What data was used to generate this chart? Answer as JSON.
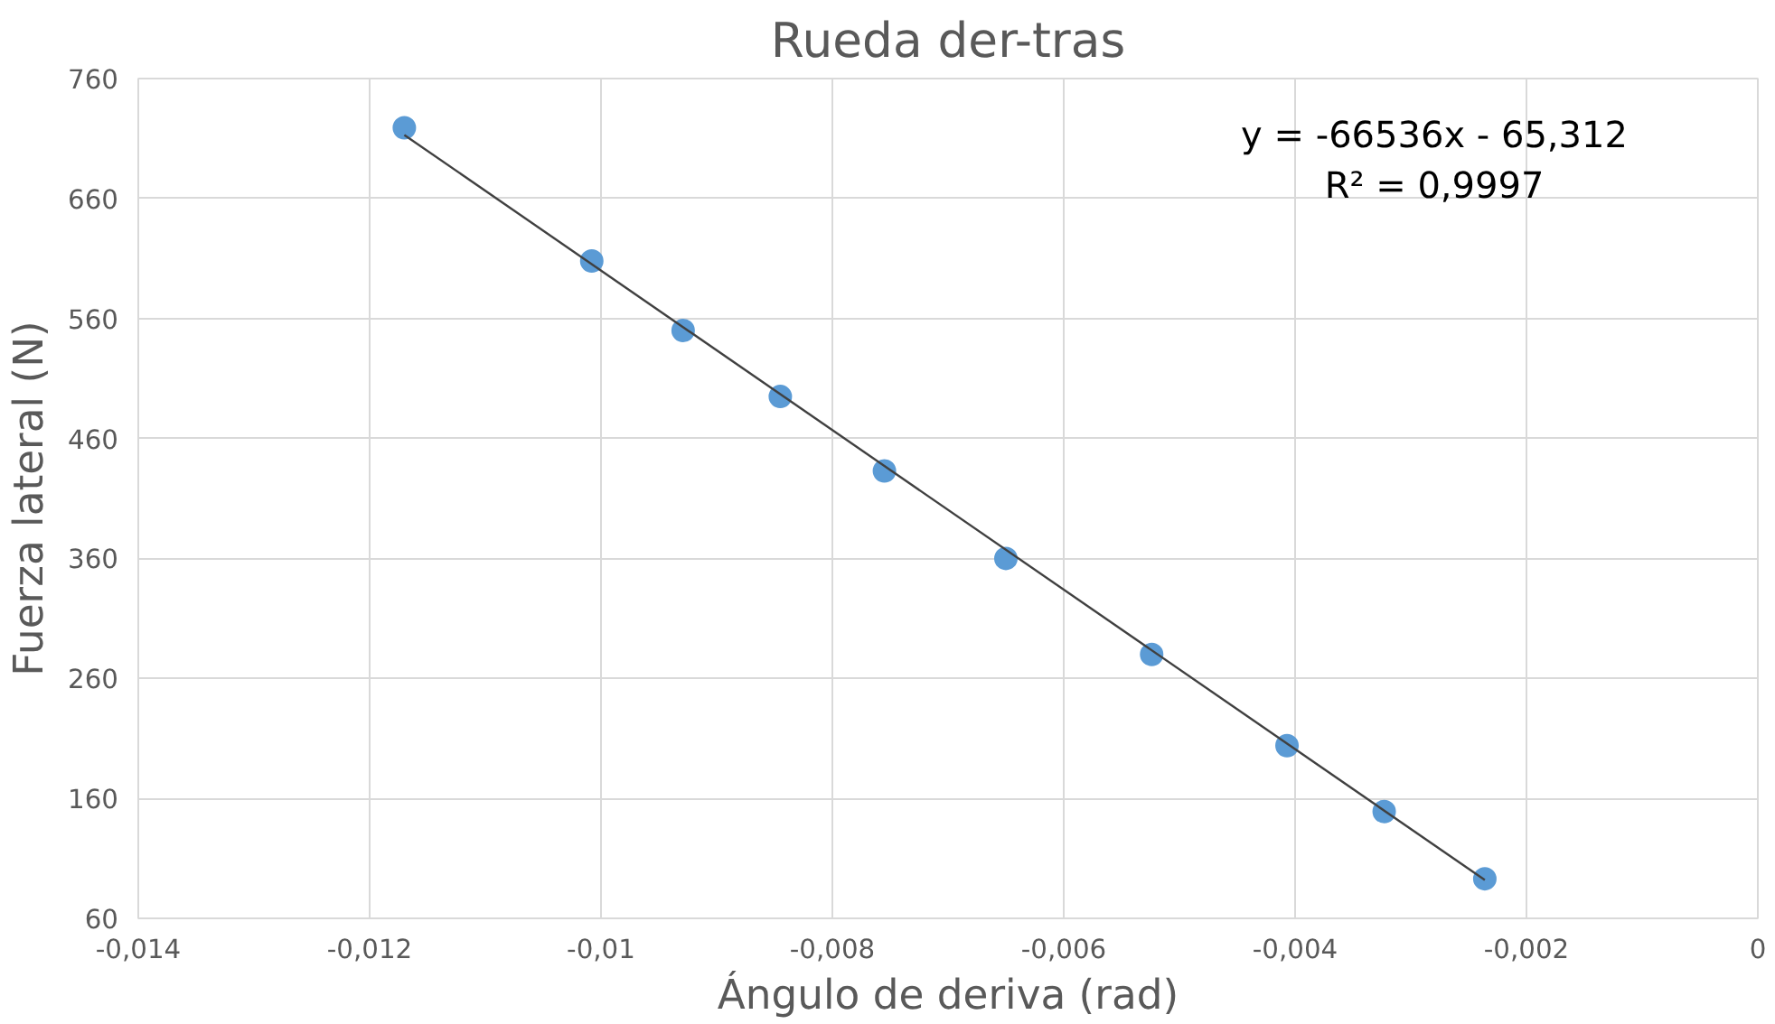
{
  "chart_data": {
    "type": "scatter",
    "title": "Rueda der-tras",
    "xlabel": "Ángulo de deriva (rad)",
    "ylabel": "Fuerza lateral (N)",
    "series": [
      {
        "color": "#5b9bd5",
        "marker": "circle",
        "x": [
          -0.0117,
          -0.01008,
          -0.00929,
          -0.00845,
          -0.00755,
          -0.0065,
          -0.00524,
          -0.00407,
          -0.00323,
          -0.00236
        ],
        "values": [
          719,
          608,
          550,
          495,
          433,
          360,
          280,
          204,
          149,
          93
        ]
      },
      {
        "type": "line",
        "color": "#404040",
        "x": [
          -0.0117,
          -0.00236
        ],
        "values": [
          713,
          92
        ]
      }
    ],
    "annotations": [
      "y = -66536x - 65,312",
      "R² = 0,9997"
    ],
    "xlim": [
      -0.014,
      0
    ],
    "ylim": [
      60,
      760
    ],
    "xticks": [
      {
        "value": -0.014,
        "label": "-0,014"
      },
      {
        "value": -0.012,
        "label": "-0,012"
      },
      {
        "value": -0.01,
        "label": "-0,01"
      },
      {
        "value": -0.008,
        "label": "-0,008"
      },
      {
        "value": -0.006,
        "label": "-0,006"
      },
      {
        "value": -0.004,
        "label": "-0,004"
      },
      {
        "value": -0.002,
        "label": "-0,002"
      },
      0
    ],
    "yticks": [
      60,
      160,
      260,
      360,
      460,
      560,
      660,
      760
    ],
    "grid": true
  }
}
